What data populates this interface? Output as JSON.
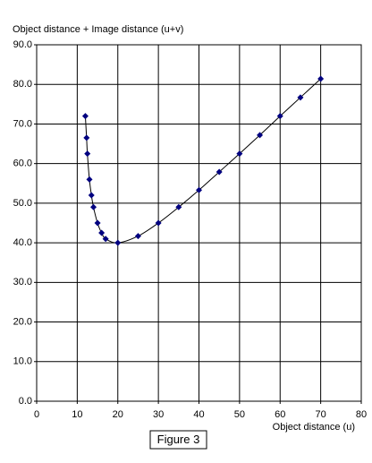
{
  "chart_data": {
    "type": "scatter",
    "y_label": "Object distance + Image distance (u+v)",
    "x_label": "Object distance (u)",
    "caption": "Figure 3",
    "x": [
      12,
      12.3,
      12.5,
      13,
      13.5,
      14,
      15,
      16,
      17,
      20,
      25,
      30,
      35,
      40,
      45,
      50,
      55,
      60,
      65,
      70
    ],
    "values": [
      72,
      66.5,
      62.5,
      56,
      52,
      49,
      45,
      42.5,
      41,
      40,
      41.7,
      45,
      49,
      53.3,
      57.9,
      62.5,
      67.2,
      72,
      76.7,
      81.4
    ],
    "color": "#000080",
    "line_color": "#000000",
    "smooth": true,
    "grid": true,
    "xlim": [
      0,
      80
    ],
    "xticks": [
      0,
      10,
      20,
      30,
      40,
      50,
      60,
      70,
      80
    ],
    "ylim": [
      0,
      90
    ],
    "yticks": [
      {
        "value": 0,
        "label": "0.0"
      },
      {
        "value": 10,
        "label": "10.0"
      },
      {
        "value": 20,
        "label": "20.0"
      },
      {
        "value": 30,
        "label": "30.0"
      },
      {
        "value": 40,
        "label": "40.0"
      },
      {
        "value": 50,
        "label": "50.0"
      },
      {
        "value": 60,
        "label": "60.0"
      },
      {
        "value": 70,
        "label": "70.0"
      },
      {
        "value": 80,
        "label": "80.0"
      },
      {
        "value": 90,
        "label": "90.0"
      }
    ]
  }
}
